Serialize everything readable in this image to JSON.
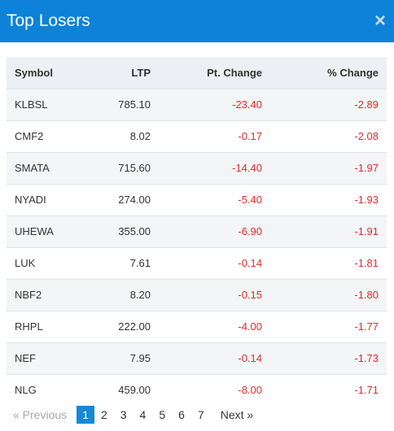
{
  "header": {
    "title": "Top Losers",
    "close_icon": "×"
  },
  "table": {
    "columns": [
      "Symbol",
      "LTP",
      "Pt. Change",
      "% Change"
    ],
    "rows": [
      {
        "symbol": "KLBSL",
        "ltp": "785.10",
        "pt_change": "-23.40",
        "pct_change": "-2.89"
      },
      {
        "symbol": "CMF2",
        "ltp": "8.02",
        "pt_change": "-0.17",
        "pct_change": "-2.08"
      },
      {
        "symbol": "SMATA",
        "ltp": "715.60",
        "pt_change": "-14.40",
        "pct_change": "-1.97"
      },
      {
        "symbol": "NYADI",
        "ltp": "274.00",
        "pt_change": "-5.40",
        "pct_change": "-1.93"
      },
      {
        "symbol": "UHEWA",
        "ltp": "355.00",
        "pt_change": "-6.90",
        "pct_change": "-1.91"
      },
      {
        "symbol": "LUK",
        "ltp": "7.61",
        "pt_change": "-0.14",
        "pct_change": "-1.81"
      },
      {
        "symbol": "NBF2",
        "ltp": "8.20",
        "pt_change": "-0.15",
        "pct_change": "-1.80"
      },
      {
        "symbol": "RHPL",
        "ltp": "222.00",
        "pt_change": "-4.00",
        "pct_change": "-1.77"
      },
      {
        "symbol": "NEF",
        "ltp": "7.95",
        "pt_change": "-0.14",
        "pct_change": "-1.73"
      },
      {
        "symbol": "NLG",
        "ltp": "459.00",
        "pt_change": "-8.00",
        "pct_change": "-1.71"
      }
    ]
  },
  "pagination": {
    "previous": "« Previous",
    "next": "Next »",
    "pages": [
      "1",
      "2",
      "3",
      "4",
      "5",
      "6",
      "7"
    ],
    "active": "1"
  },
  "colors": {
    "header_bg": "#0e82d9",
    "negative": "#e02b2b",
    "active_page": "#1688d6"
  }
}
